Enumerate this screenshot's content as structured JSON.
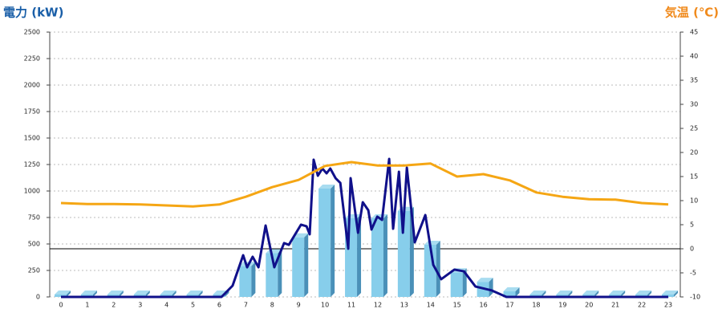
{
  "chart_data": {
    "type": "combo",
    "title": "電力 (kW)",
    "y2_title": "気温 (℃)",
    "title_color": "#1a5fa8",
    "y2_title_color": "#f08a1c",
    "categories": [
      "0",
      "1",
      "2",
      "3",
      "4",
      "5",
      "6",
      "7",
      "8",
      "9",
      "10",
      "11",
      "12",
      "13",
      "14",
      "15",
      "16",
      "17",
      "18",
      "19",
      "20",
      "21",
      "22",
      "23"
    ],
    "ylim": [
      0,
      2500
    ],
    "yticks": [
      0,
      250,
      500,
      750,
      1000,
      1250,
      1500,
      1750,
      2000,
      2250,
      2500
    ],
    "y2lim": [
      -10,
      45
    ],
    "y2ticks": [
      -10,
      -5,
      0,
      5,
      10,
      15,
      20,
      25,
      30,
      35,
      40,
      45
    ],
    "grid": true,
    "series": [
      {
        "type": "bar",
        "color": "#87ceeb",
        "values": [
          0,
          0,
          0,
          0,
          0,
          0,
          0,
          270,
          390,
          540,
          1000,
          720,
          720,
          790,
          470,
          210,
          120,
          30,
          0,
          0,
          0,
          0,
          0,
          0
        ]
      },
      {
        "type": "line",
        "color": "#10108a",
        "x": [
          0,
          6.08,
          6.5,
          6.9,
          7.05,
          7.26,
          7.48,
          7.75,
          8.08,
          8.45,
          8.63,
          9.09,
          9.3,
          9.42,
          9.57,
          9.73,
          9.9,
          10.06,
          10.2,
          10.4,
          10.58,
          10.88,
          10.97,
          11.25,
          11.43,
          11.64,
          11.76,
          11.98,
          12.16,
          12.43,
          12.58,
          12.8,
          12.95,
          13.1,
          13.4,
          13.8,
          14.1,
          14.4,
          14.9,
          15.26,
          15.7,
          16.32,
          16.87,
          23
        ],
        "values": [
          0,
          0,
          106,
          394,
          280,
          379,
          280,
          674,
          280,
          508,
          492,
          682,
          667,
          591,
          1295,
          1144,
          1212,
          1167,
          1212,
          1121,
          1076,
          455,
          1121,
          606,
          894,
          818,
          636,
          758,
          727,
          1303,
          644,
          1182,
          606,
          1220,
          515,
          773,
          303,
          167,
          258,
          242,
          98,
          61,
          0,
          0
        ]
      },
      {
        "type": "line",
        "color": "#f5a614",
        "axis": "y2",
        "values": [
          9.5,
          9.3,
          9.3,
          9.2,
          9.0,
          8.8,
          9.2,
          10.8,
          12.8,
          14.3,
          17.2,
          18.0,
          17.3,
          17.3,
          17.7,
          15.0,
          15.5,
          14.2,
          11.7,
          10.8,
          10.3,
          10.2,
          9.5,
          9.2
        ]
      }
    ]
  }
}
